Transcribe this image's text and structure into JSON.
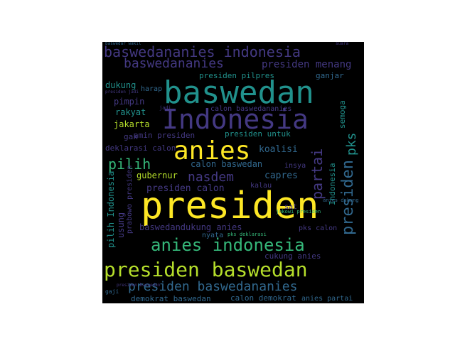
{
  "palette": {
    "yellow": "#fde725",
    "lime": "#b5de2b",
    "green": "#35b779",
    "teal": "#21918c",
    "blue": "#31688e",
    "indigo": "#443983",
    "purple": "#440154"
  },
  "words": [
    {
      "text": "presiden"
    },
    {
      "text": "baswedan"
    },
    {
      "text": "Indonesia"
    },
    {
      "text": "anies"
    },
    {
      "text": "presiden baswedan"
    },
    {
      "text": "baswedananies indonesia"
    },
    {
      "text": "anies indonesia"
    },
    {
      "text": "presiden baswedananies"
    },
    {
      "text": "baswedananies"
    },
    {
      "text": "presiden menang"
    },
    {
      "text": "partai"
    },
    {
      "text": "presiden"
    },
    {
      "text": "pks"
    },
    {
      "text": "pilih"
    },
    {
      "text": "nasdem"
    },
    {
      "text": "calon baswedan"
    },
    {
      "text": "presiden calon"
    },
    {
      "text": "presiden pilpres"
    },
    {
      "text": "amin presiden"
    },
    {
      "text": "presiden untuk"
    },
    {
      "text": "koalisi"
    },
    {
      "text": "capres"
    },
    {
      "text": "gubernur"
    },
    {
      "text": "baswedandukung anies"
    },
    {
      "text": "deklarasi calon"
    },
    {
      "text": "calon baswedananies"
    },
    {
      "text": "dukung"
    },
    {
      "text": "pimpin"
    },
    {
      "text": "rakyat"
    },
    {
      "text": "jakarta"
    },
    {
      "text": "gak"
    },
    {
      "text": "ganjar"
    },
    {
      "text": "semoga"
    },
    {
      "text": "Indonesia"
    },
    {
      "text": "demokrat baswedan"
    },
    {
      "text": "calon demokrat"
    },
    {
      "text": "anies partai"
    },
    {
      "text": "cukung anies"
    },
    {
      "text": "pks calon"
    },
    {
      "text": "insya"
    },
    {
      "text": "sat"
    },
    {
      "text": "pilih Indonesia"
    },
    {
      "text": "usung"
    },
    {
      "text": "prabowo presiden"
    },
    {
      "text": "nyata"
    },
    {
      "text": "kalau"
    },
    {
      "text": "harap"
    },
    {
      "text": "jadi"
    },
    {
      "text": "gaji"
    },
    {
      "text": "presiden baswedan"
    },
    {
      "text": "pks deklarasi"
    },
    {
      "text": "jokowi presiden"
    },
    {
      "text": "anies dukung"
    },
    {
      "text": "presiden jadi"
    },
    {
      "text": "baswedar wakil"
    },
    {
      "text": "suara"
    }
  ]
}
